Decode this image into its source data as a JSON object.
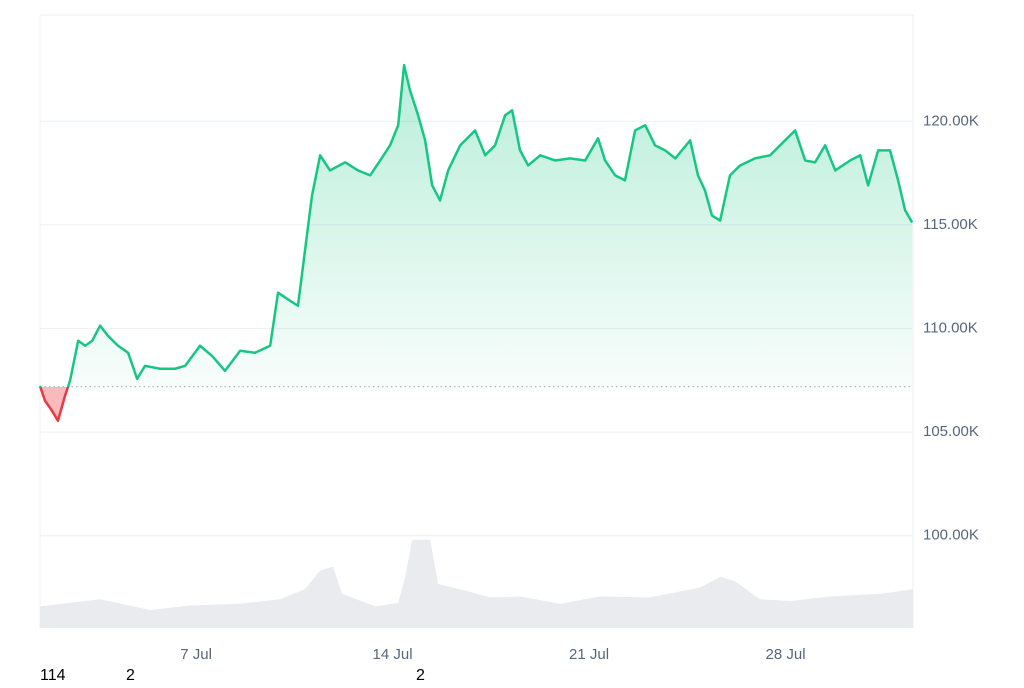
{
  "chart_data": {
    "type": "price-line",
    "x": [
      1.44,
      1.62,
      1.87,
      2.08,
      2.33,
      2.51,
      2.8,
      3.05,
      3.3,
      3.58,
      3.86,
      4.22,
      4.58,
      4.9,
      5.18,
      5.72,
      6.25,
      6.61,
      7.14,
      7.57,
      8.03,
      8.57,
      9.1,
      9.64,
      9.92,
      10.35,
      10.63,
      10.88,
      11.13,
      11.42,
      11.77,
      12.31,
      12.77,
      13.2,
      13.56,
      13.91,
      14.2,
      14.41,
      14.62,
      14.91,
      15.16,
      15.41,
      15.69,
      15.98,
      16.41,
      16.94,
      17.3,
      17.65,
      18.01,
      18.26,
      18.54,
      18.83,
      19.26,
      19.79,
      20.32,
      20.86,
      21.32,
      21.57,
      21.93,
      22.28,
      22.64,
      23.0,
      23.35,
      23.71,
      24.07,
      24.6,
      24.88,
      25.13,
      25.38,
      25.67,
      26.02,
      26.38,
      26.91,
      27.45,
      27.98,
      28.34,
      28.7,
      29.05,
      29.41,
      29.77,
      30.3,
      30.66,
      30.94,
      31.3,
      31.72,
      32.01,
      32.26,
      32.51
    ],
    "values": [
      107.23,
      106.51,
      106.03,
      105.55,
      106.75,
      107.48,
      109.41,
      109.17,
      109.41,
      110.14,
      109.65,
      109.17,
      108.83,
      107.57,
      108.2,
      108.06,
      108.06,
      108.2,
      109.17,
      108.68,
      107.96,
      108.93,
      108.83,
      109.17,
      111.73,
      111.34,
      111.1,
      113.76,
      116.42,
      118.36,
      117.63,
      118.02,
      117.63,
      117.39,
      118.11,
      118.84,
      119.81,
      122.71,
      121.5,
      120.29,
      119.08,
      116.91,
      116.18,
      117.63,
      118.84,
      119.56,
      118.36,
      118.84,
      120.29,
      120.53,
      118.6,
      117.87,
      118.36,
      118.11,
      118.21,
      118.11,
      119.18,
      118.11,
      117.39,
      117.15,
      119.56,
      119.81,
      118.84,
      118.6,
      118.21,
      119.08,
      117.39,
      116.66,
      115.45,
      115.21,
      117.39,
      117.87,
      118.21,
      118.36,
      119.08,
      119.56,
      118.11,
      118.02,
      118.84,
      117.63,
      118.11,
      118.36,
      116.91,
      118.6,
      118.6,
      117.15,
      115.7,
      115.12
    ],
    "baseline": 107.19,
    "up_color": "#16c784",
    "down_color": "#ea3943",
    "volume": {
      "x": [
        1.44,
        3.58,
        5.36,
        6.79,
        8.57,
        9.99,
        10.88,
        11.42,
        11.88,
        12.2,
        13.38,
        14.2,
        14.45,
        14.7,
        15.34,
        15.62,
        16.41,
        17.47,
        18.54,
        19.97,
        21.39,
        23.17,
        24.96,
        25.67,
        26.2,
        27.09,
        28.16,
        29.59,
        31.37,
        32.54
      ],
      "values": [
        24,
        32,
        20,
        25,
        27,
        32,
        43,
        64,
        68,
        38,
        24,
        28,
        57,
        98,
        98,
        49,
        43,
        34,
        35,
        27,
        35,
        34,
        45,
        57,
        52,
        32,
        30,
        35,
        38,
        43
      ],
      "vlim": [
        0,
        100
      ],
      "color": "#e9ebef"
    },
    "xlim": [
      1.44,
      32.54
    ],
    "xticks": [
      {
        "value": 7,
        "label": "7 Jul"
      },
      {
        "value": 14,
        "label": "14 Jul"
      },
      {
        "value": 21,
        "label": "21 Jul"
      },
      {
        "value": 28,
        "label": "28 Jul"
      }
    ],
    "ylim": [
      95.55,
      125.13
    ],
    "yticks": [
      {
        "value": 100,
        "label": "100.00K"
      },
      {
        "value": 105,
        "label": "105.00K"
      },
      {
        "value": 110,
        "label": "110.00K"
      },
      {
        "value": 115,
        "label": "115.00K"
      },
      {
        "value": 120,
        "label": "120.00K"
      }
    ],
    "grid": true
  },
  "stray_labels": [
    "114",
    "2",
    "2"
  ]
}
